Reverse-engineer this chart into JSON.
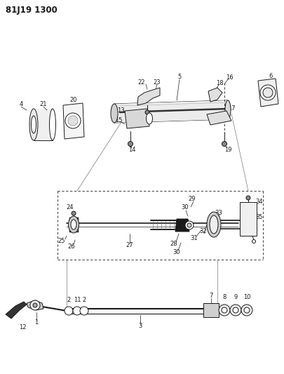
{
  "title": "81J19 1300",
  "bg_color": "#ffffff",
  "line_color": "#1a1a1a",
  "fig_width": 4.06,
  "fig_height": 5.33,
  "dpi": 100,
  "lfs": 6.0,
  "tfs": 8.5
}
